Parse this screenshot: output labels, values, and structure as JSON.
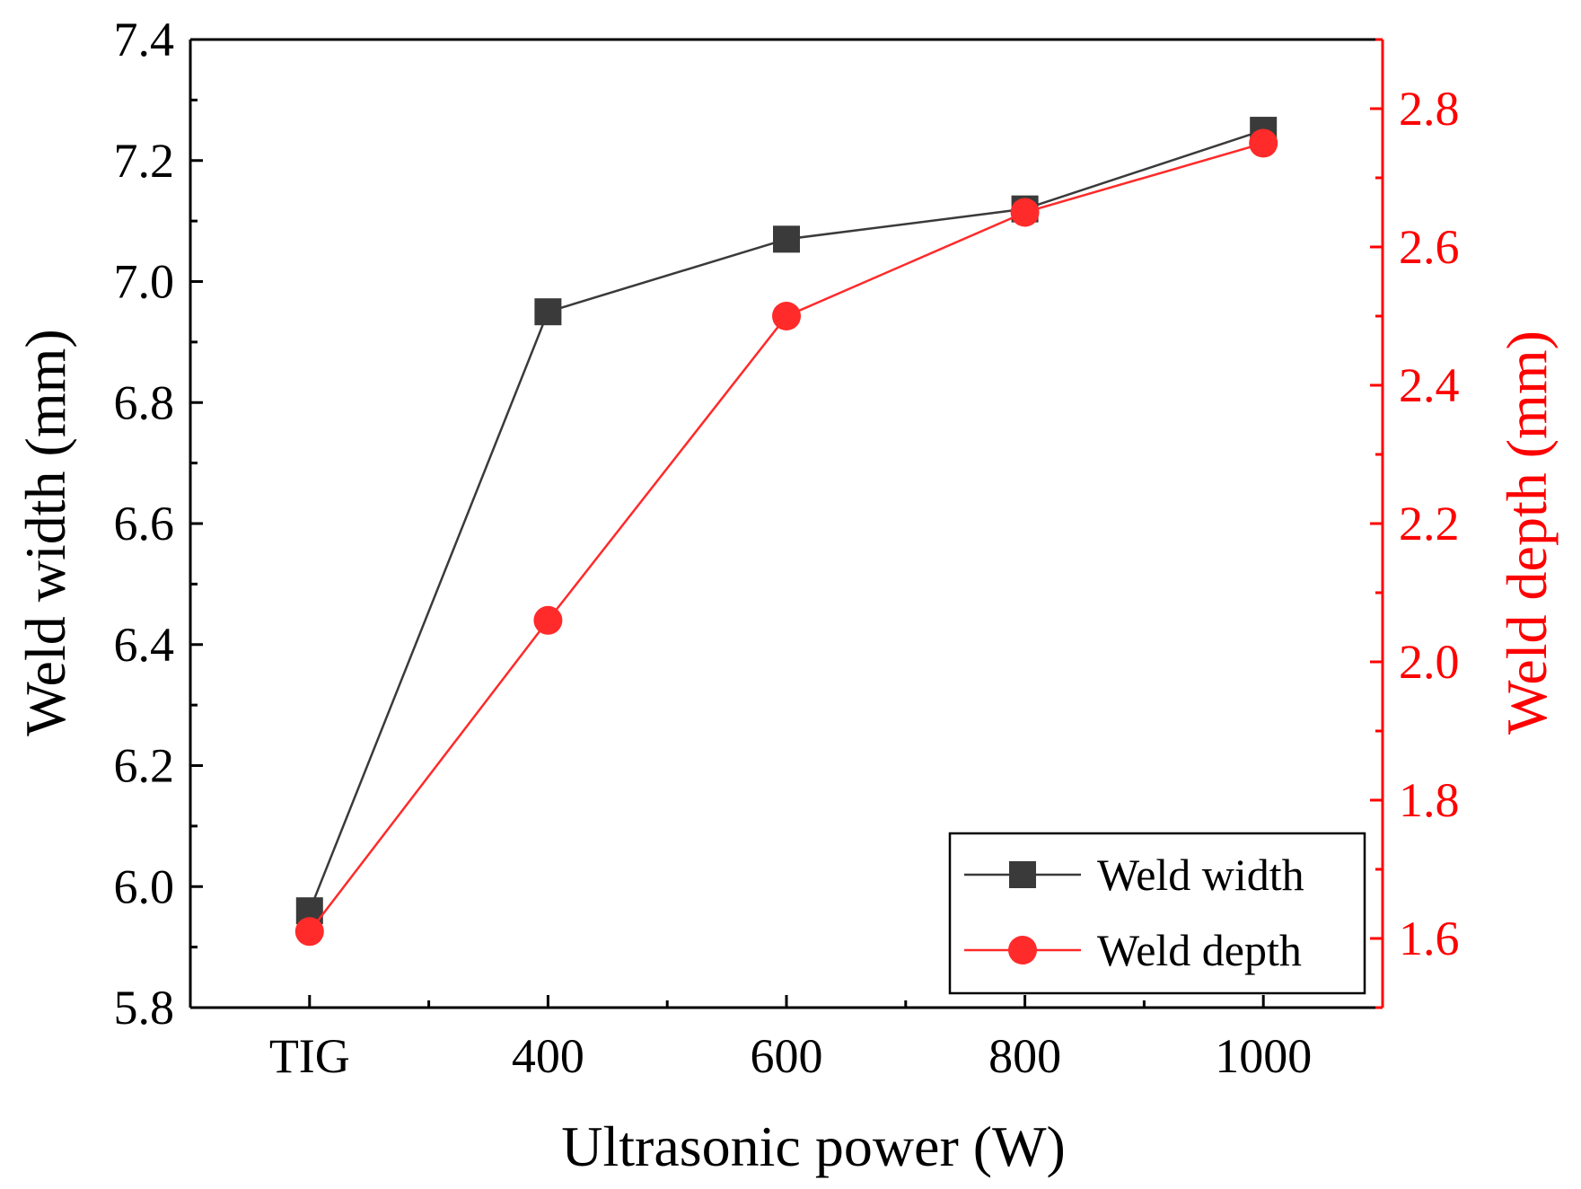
{
  "colors": {
    "width_series": "#3a3a3a",
    "depth_series": "#ff2a2a",
    "axis_left": "#000000",
    "axis_right": "#ff0000"
  },
  "chart_data": {
    "type": "line",
    "title": "",
    "xlabel": "Ultrasonic power (W)",
    "ylabel": "Weld width (mm)",
    "y2label": "Weld depth (mm)",
    "categories": [
      "TIG",
      "400",
      "600",
      "800",
      "1000"
    ],
    "xlim": [
      -0.5,
      4.5
    ],
    "ylim": [
      5.8,
      7.4
    ],
    "y2lim": [
      1.5,
      2.9
    ],
    "yticks": [
      "5.8",
      "6.0",
      "6.2",
      "6.4",
      "6.6",
      "6.8",
      "7.0",
      "7.2",
      "7.4"
    ],
    "y2ticks": [
      "1.6",
      "1.8",
      "2.0",
      "2.2",
      "2.4",
      "2.6",
      "2.8"
    ],
    "legend_position": "bottom-right",
    "series": [
      {
        "name": "Weld width",
        "axis": "left",
        "marker": "square",
        "values": [
          5.96,
          6.95,
          7.07,
          7.12,
          7.25
        ]
      },
      {
        "name": "Weld depth",
        "axis": "right",
        "marker": "circle",
        "values": [
          1.61,
          2.06,
          2.5,
          2.65,
          2.75
        ]
      }
    ]
  }
}
